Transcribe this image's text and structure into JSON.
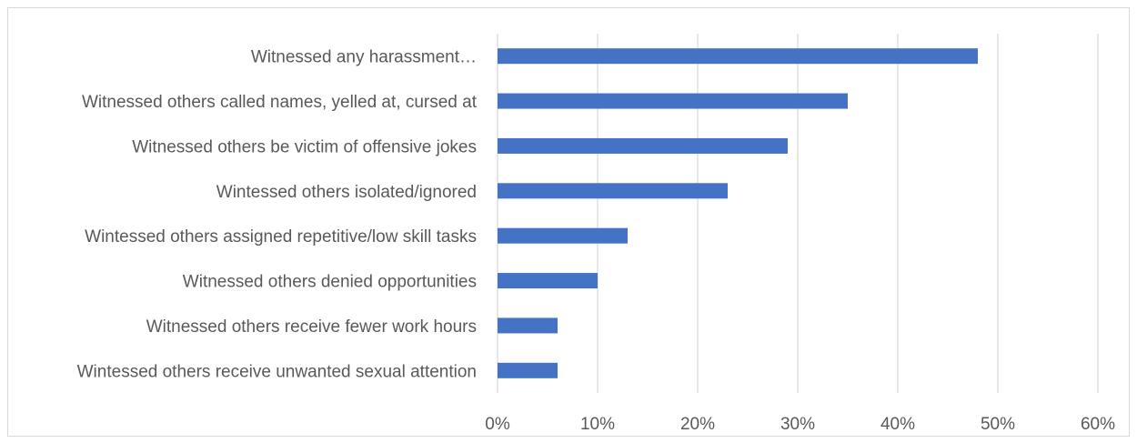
{
  "chart_data": {
    "type": "bar",
    "orientation": "horizontal",
    "categories": [
      "Witnessed any harassment…",
      "Witnessed others called names, yelled at, cursed at",
      "Witnessed others be victim of offensive jokes",
      "Wintessed others isolated/ignored",
      "Wintessed others assigned repetitive/low skill tasks",
      "Witnessed others denied opportunities",
      "Witnessed others receive fewer work hours",
      "Wintessed others receive unwanted sexual attention"
    ],
    "values": [
      48,
      35,
      29,
      23,
      13,
      10,
      6,
      6
    ],
    "xlim": [
      0,
      60
    ],
    "x_ticks": [
      0,
      10,
      20,
      30,
      40,
      50,
      60
    ],
    "x_tick_labels": [
      "0%",
      "10%",
      "20%",
      "30%",
      "40%",
      "50%",
      "60%"
    ],
    "grid": true,
    "legend": "none",
    "bar_color": "#4472c4",
    "title": "",
    "xlabel": "",
    "ylabel": ""
  }
}
